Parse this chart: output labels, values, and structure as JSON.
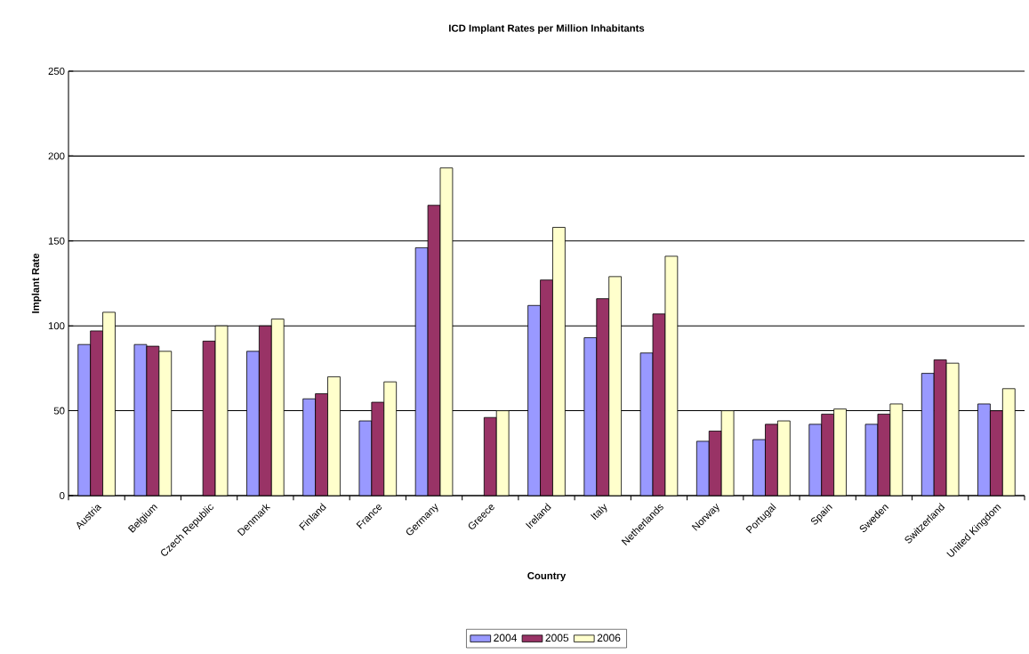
{
  "chart_data": {
    "type": "bar",
    "title": "ICD Implant Rates per Million Inhabitants",
    "xlabel": "Country",
    "ylabel": "Implant Rate",
    "categories": [
      "Austria",
      "Belgium",
      "Czech Republic",
      "Denmark",
      "Finland",
      "France",
      "Germany",
      "Greece",
      "Ireland",
      "Italy",
      "Netherlands",
      "Norway",
      "Portugal",
      "Spain",
      "Sweden",
      "Switzerland",
      "United Kingdom"
    ],
    "series": [
      {
        "name": "2004",
        "color": "#9999ff",
        "values": [
          89,
          89,
          null,
          85,
          57,
          44,
          146,
          null,
          112,
          93,
          84,
          32,
          33,
          42,
          42,
          72,
          54
        ]
      },
      {
        "name": "2005",
        "color": "#993366",
        "values": [
          97,
          88,
          91,
          100,
          60,
          55,
          171,
          46,
          127,
          116,
          107,
          38,
          42,
          48,
          48,
          80,
          50
        ]
      },
      {
        "name": "2006",
        "color": "#ffffcc",
        "values": [
          108,
          85,
          100,
          104,
          70,
          67,
          193,
          50,
          158,
          129,
          141,
          50,
          44,
          51,
          54,
          78,
          63
        ]
      }
    ],
    "ylim": [
      0,
      250
    ],
    "yticks": [
      0,
      50,
      100,
      150,
      200,
      250
    ],
    "grid": "y",
    "legend": "bottom"
  }
}
